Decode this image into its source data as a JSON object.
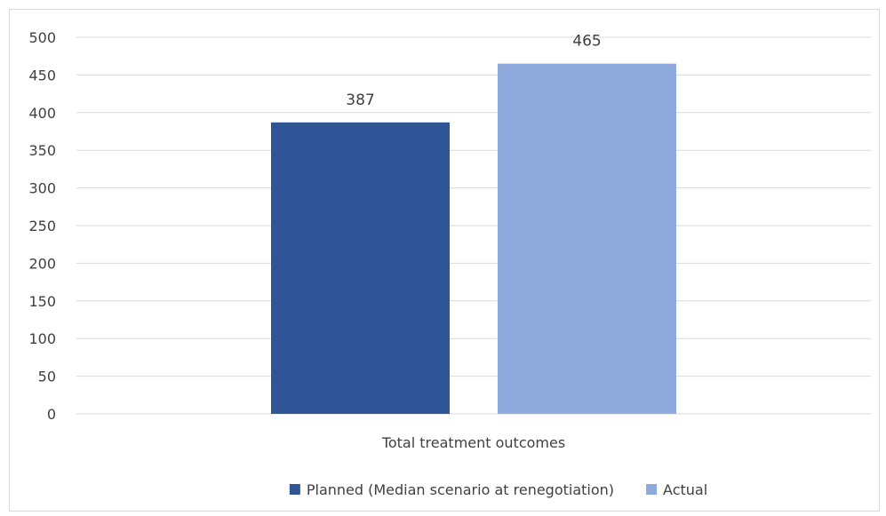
{
  "chart_data": {
    "type": "bar",
    "categories": [
      "Total treatment outcomes"
    ],
    "series": [
      {
        "name": "Planned (Median scenario at renegotiation)",
        "values": [
          387
        ],
        "color": "#2f5597"
      },
      {
        "name": "Actual",
        "values": [
          465
        ],
        "color": "#8faadc"
      }
    ],
    "ylim": [
      0,
      500
    ],
    "yticks": [
      0,
      50,
      100,
      150,
      200,
      250,
      300,
      350,
      400,
      450,
      500
    ],
    "grid": true,
    "legend_position": "bottom",
    "data_labels": true
  },
  "colors": {
    "gridline": "#d9d9d9",
    "text": "#404040",
    "border": "#d9d9d9"
  }
}
